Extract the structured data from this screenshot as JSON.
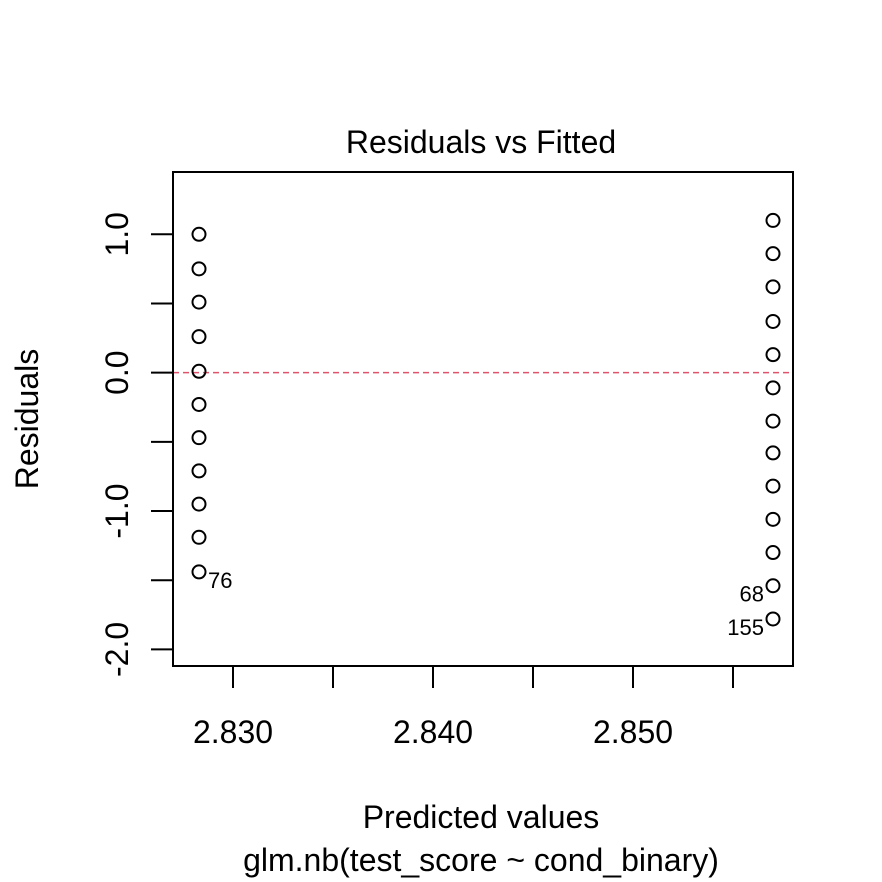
{
  "chart_data": {
    "type": "scatter",
    "title": "Residuals vs Fitted",
    "xlabel": "Predicted values",
    "sublabel": "glm.nb(test_score ~ cond_binary)",
    "ylabel": "Residuals",
    "xlim": [
      2.827,
      2.858
    ],
    "ylim": [
      -2.12,
      1.45
    ],
    "x_ticks": [
      {
        "value": 2.83,
        "label": "2.830"
      },
      {
        "value": 2.835,
        "label": ""
      },
      {
        "value": 2.84,
        "label": "2.840"
      },
      {
        "value": 2.845,
        "label": ""
      },
      {
        "value": 2.85,
        "label": "2.850"
      },
      {
        "value": 2.855,
        "label": ""
      }
    ],
    "y_ticks": [
      {
        "value": 1.0,
        "label": "1.0"
      },
      {
        "value": 0.5,
        "label": ""
      },
      {
        "value": 0.0,
        "label": "0.0"
      },
      {
        "value": -0.5,
        "label": ""
      },
      {
        "value": -1.0,
        "label": "-1.0"
      },
      {
        "value": -1.5,
        "label": ""
      },
      {
        "value": -2.0,
        "label": "-2.0"
      }
    ],
    "reference_line": {
      "y": 0,
      "color": "#DF536B",
      "style": "dashed"
    },
    "point_color": "#000000",
    "series": [
      {
        "x": [
          2.8283,
          2.8283,
          2.8283,
          2.8283,
          2.8283,
          2.8283,
          2.8283,
          2.8283,
          2.8283,
          2.8283,
          2.8283,
          2.857,
          2.857,
          2.857,
          2.857,
          2.857,
          2.857,
          2.857,
          2.857,
          2.857,
          2.857,
          2.857,
          2.857,
          2.857
        ],
        "y": [
          1.0,
          0.75,
          0.51,
          0.26,
          0.01,
          -0.23,
          -0.47,
          -0.71,
          -0.95,
          -1.19,
          -1.44,
          1.1,
          0.86,
          0.62,
          0.37,
          0.13,
          -0.11,
          -0.35,
          -0.58,
          -0.82,
          -1.06,
          -1.3,
          -1.54,
          -1.78
        ]
      }
    ],
    "annotations": [
      {
        "label": "76",
        "x": 2.8283,
        "y": -1.44,
        "side": "right"
      },
      {
        "label": "68",
        "x": 2.857,
        "y": -1.54,
        "side": "left"
      },
      {
        "label": "155",
        "x": 2.857,
        "y": -1.78,
        "side": "left"
      }
    ]
  }
}
